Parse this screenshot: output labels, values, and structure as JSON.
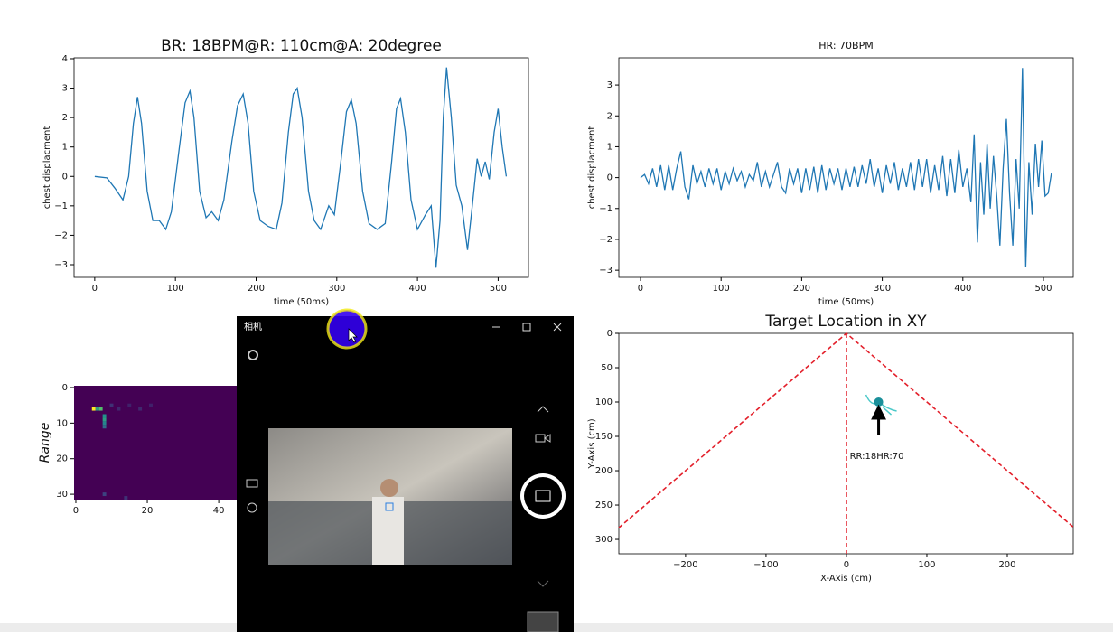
{
  "chart_data": [
    {
      "type": "line",
      "title": "BR: 18BPM@R: 110cm@A: 20degree",
      "x_label": "time (50ms)",
      "y_label": "chest displacment",
      "color": "#1f77b4",
      "x": [
        0,
        15,
        25,
        35,
        42,
        48,
        53,
        58,
        65,
        72,
        80,
        88,
        95,
        105,
        112,
        118,
        123,
        130,
        138,
        145,
        153,
        160,
        170,
        177,
        184,
        190,
        197,
        205,
        215,
        225,
        232,
        240,
        246,
        251,
        257,
        265,
        272,
        280,
        290,
        297,
        305,
        312,
        318,
        324,
        332,
        340,
        350,
        360,
        368,
        374,
        379,
        385,
        392,
        400,
        410,
        417,
        423,
        428,
        432,
        436,
        442,
        448,
        455,
        462,
        468,
        474,
        479,
        484,
        489,
        495,
        500,
        505,
        510
      ],
      "values": [
        0,
        -0.05,
        -0.4,
        -0.8,
        0,
        1.8,
        2.7,
        1.8,
        -0.5,
        -1.5,
        -1.5,
        -1.8,
        -1.2,
        1.0,
        2.5,
        2.9,
        2.0,
        -0.5,
        -1.4,
        -1.2,
        -1.5,
        -0.8,
        1.2,
        2.4,
        2.8,
        1.8,
        -0.5,
        -1.5,
        -1.7,
        -1.8,
        -0.9,
        1.5,
        2.8,
        3.0,
        2.0,
        -0.5,
        -1.5,
        -1.8,
        -1.0,
        -1.3,
        0.5,
        2.2,
        2.6,
        1.8,
        -0.5,
        -1.6,
        -1.8,
        -1.6,
        0.5,
        2.3,
        2.65,
        1.5,
        -0.8,
        -1.8,
        -1.3,
        -1.0,
        -3.1,
        -1.5,
        2.0,
        3.7,
        2.0,
        -0.3,
        -1.0,
        -2.5,
        -1.0,
        0.6,
        0.0,
        0.5,
        -0.1,
        1.5,
        2.3,
        1.0,
        0.0
      ],
      "xlim": [
        -25.6,
        537.6
      ],
      "ylim": [
        -3.43,
        4.03
      ],
      "xticks": [
        0,
        100,
        200,
        300,
        400,
        500
      ],
      "yticks": [
        {
          "value": -3,
          "label": "−3"
        },
        {
          "value": -2,
          "label": "−2"
        },
        {
          "value": -1,
          "label": "−1"
        },
        0,
        1,
        2,
        3,
        4
      ]
    },
    {
      "type": "line",
      "title": "HR: 70BPM",
      "x_label": "time (50ms)",
      "y_label": "chest displacment",
      "color": "#1f77b4",
      "x": [
        0,
        5,
        10,
        15,
        20,
        25,
        30,
        35,
        40,
        45,
        50,
        55,
        60,
        65,
        70,
        75,
        80,
        85,
        90,
        95,
        100,
        105,
        110,
        115,
        120,
        125,
        130,
        135,
        140,
        145,
        150,
        155,
        160,
        165,
        170,
        175,
        180,
        185,
        190,
        195,
        200,
        205,
        210,
        215,
        220,
        225,
        230,
        235,
        240,
        245,
        250,
        255,
        260,
        265,
        270,
        275,
        280,
        285,
        290,
        295,
        300,
        305,
        310,
        315,
        320,
        325,
        330,
        335,
        340,
        345,
        350,
        355,
        360,
        365,
        370,
        375,
        380,
        385,
        390,
        395,
        400,
        405,
        410,
        414,
        418,
        422,
        426,
        430,
        434,
        438,
        442,
        446,
        450,
        454,
        458,
        462,
        466,
        470,
        474,
        478,
        482,
        486,
        490,
        494,
        498,
        502,
        506,
        510
      ],
      "values": [
        0,
        0.1,
        -0.2,
        0.3,
        -0.3,
        0.4,
        -0.4,
        0.4,
        -0.4,
        0.3,
        0.85,
        -0.3,
        -0.7,
        0.4,
        -0.2,
        0.2,
        -0.3,
        0.3,
        -0.2,
        0.3,
        -0.4,
        0.2,
        -0.2,
        0.3,
        -0.1,
        0.2,
        -0.3,
        0.1,
        -0.1,
        0.5,
        -0.3,
        0.2,
        -0.3,
        0.1,
        0.5,
        -0.3,
        -0.5,
        0.3,
        -0.2,
        0.3,
        -0.5,
        0.3,
        -0.4,
        0.35,
        -0.5,
        0.4,
        -0.4,
        0.3,
        -0.2,
        0.3,
        -0.4,
        0.3,
        -0.3,
        0.35,
        -0.3,
        0.4,
        -0.2,
        0.6,
        -0.3,
        0.3,
        -0.5,
        0.4,
        -0.2,
        0.5,
        -0.4,
        0.3,
        -0.3,
        0.5,
        -0.4,
        0.6,
        -0.3,
        0.6,
        -0.5,
        0.4,
        -0.4,
        0.7,
        -0.6,
        0.6,
        -0.5,
        0.9,
        -0.3,
        0.3,
        -0.8,
        1.4,
        -2.1,
        0.5,
        -1.2,
        1.1,
        -1.0,
        0.7,
        -0.6,
        -2.2,
        0.3,
        1.9,
        -0.5,
        -2.2,
        0.6,
        -1.0,
        3.55,
        -2.9,
        0.5,
        -1.2,
        1.1,
        -0.3,
        1.2,
        -0.6,
        -0.5,
        0.15
      ],
      "xlim": [
        -26.9,
        537
      ],
      "ylim": [
        -3.23,
        3.88
      ],
      "xticks": [
        0,
        100,
        200,
        300,
        400,
        500
      ],
      "yticks": [
        {
          "value": -3,
          "label": "−3"
        },
        {
          "value": -2,
          "label": "−2"
        },
        {
          "value": -1,
          "label": "−1"
        },
        0,
        1,
        2,
        3
      ]
    },
    {
      "type": "heatmap",
      "y_label": "Range",
      "y_inverted": true,
      "xlim": [
        -0.5,
        63.5
      ],
      "ylim": [
        -0.5,
        31.5
      ],
      "xticks": [
        0,
        20,
        40
      ],
      "yticks": [
        0,
        10,
        20,
        30
      ],
      "cells": {
        "x": [
          5,
          6,
          7,
          8,
          8,
          8,
          8,
          10,
          12,
          15,
          18,
          21,
          8,
          14
        ],
        "y": [
          6,
          6,
          6,
          8,
          9,
          10,
          11,
          5,
          6,
          5,
          6,
          5,
          30,
          31
        ],
        "values": [
          1.0,
          0.55,
          0.7,
          0.5,
          0.55,
          0.45,
          0.35,
          0.15,
          0.12,
          0.1,
          0.12,
          0.1,
          0.2,
          0.15
        ]
      }
    },
    {
      "type": "target",
      "title": "Target Location in XY",
      "x_label": "X-Axis (cm)",
      "y_label": "Y-Axis (cm)",
      "y_inverted": true,
      "xlim": [
        -283,
        282
      ],
      "ylim": [
        0,
        321
      ],
      "xticks": [
        {
          "value": -200,
          "label": "−200"
        },
        {
          "value": -100,
          "label": "−100"
        },
        0,
        100,
        200
      ],
      "yticks": [
        0,
        50,
        100,
        150,
        200,
        250,
        300
      ],
      "boundary": {
        "x": [
          -283,
          0,
          282
        ],
        "y": [
          283,
          0,
          282
        ],
        "color": "#e3202b"
      },
      "center_line": {
        "x": [
          0,
          0
        ],
        "y": [
          0,
          321
        ],
        "color": "#e3202b"
      },
      "target": {
        "x": 40,
        "y": 100,
        "label": "RR:18HR:70",
        "color": "#1a8f9a"
      }
    }
  ],
  "camera_window": {
    "title": "相机"
  }
}
